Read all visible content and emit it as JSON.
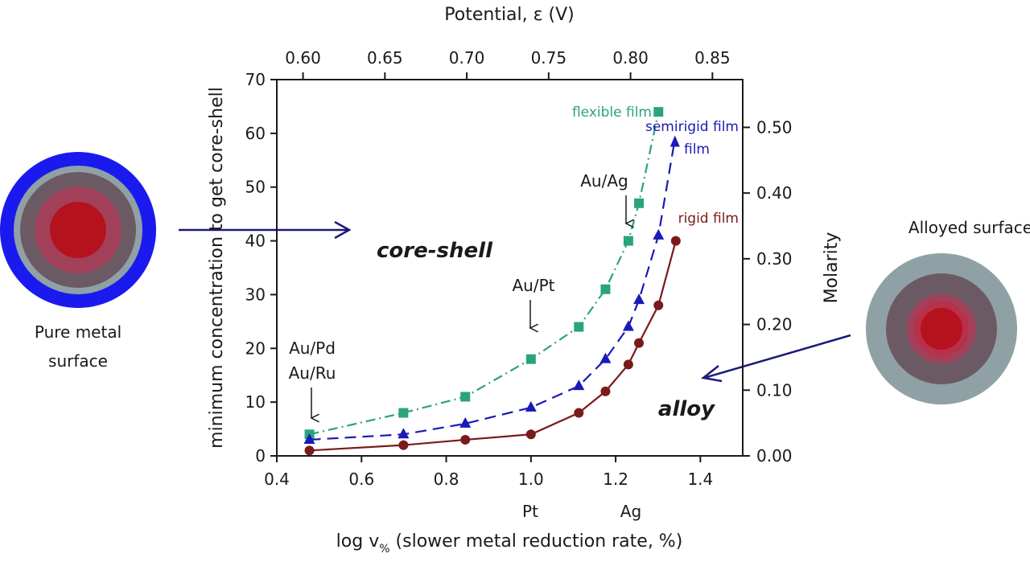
{
  "chart_data": {
    "type": "line",
    "title": "",
    "xlabel": "log v% (slower metal reduction rate, %)",
    "xlabel_main": "log v",
    "xlabel_sub": "%",
    "xlabel_rest": " (slower metal reduction rate, %)",
    "ylabel": "minimum concentration to get core-shell",
    "x2label": "Potential, ε (V)",
    "y2label": "Molarity",
    "xlim": [
      0.4,
      1.5
    ],
    "ylim": [
      0,
      70
    ],
    "x2lim": [
      0.584,
      0.8685
    ],
    "y2lim": [
      0,
      0.5727
    ],
    "xticks": [
      0.4,
      0.6,
      0.8,
      1.0,
      1.2,
      1.4
    ],
    "xtick_labels": [
      "0.4",
      "0.6",
      "0.8",
      "1.0",
      "1.2",
      "1.4"
    ],
    "yticks": [
      0,
      10,
      20,
      30,
      40,
      50,
      60,
      70
    ],
    "ytick_labels": [
      "0",
      "10",
      "20",
      "30",
      "40",
      "50",
      "60",
      "70"
    ],
    "x2ticks": [
      0.6,
      0.65,
      0.7,
      0.75,
      0.8,
      0.85
    ],
    "x2tick_labels": [
      "0.60",
      "0.65",
      "0.70",
      "0.75",
      "0.80",
      "0.85"
    ],
    "y2ticks": [
      0.0,
      0.1,
      0.2,
      0.3,
      0.4,
      0.5
    ],
    "y2tick_labels": [
      "0.00",
      "0.10",
      "0.20",
      "0.30",
      "0.40",
      "0.50"
    ],
    "grid": false,
    "series": [
      {
        "name": "flexible film",
        "color": "#2aa37f",
        "marker": "square",
        "linestyle": "dashdot",
        "x": [
          0.477,
          0.699,
          0.845,
          1.0,
          1.113,
          1.176,
          1.23,
          1.255,
          1.301
        ],
        "y": [
          4,
          8,
          11,
          18,
          24,
          31,
          40,
          47,
          64
        ]
      },
      {
        "name": "semirigid film",
        "color": "#1a1ab8",
        "marker": "triangle",
        "linestyle": "dashed",
        "x": [
          0.477,
          0.699,
          0.845,
          1.0,
          1.113,
          1.176,
          1.23,
          1.255,
          1.301
        ],
        "y": [
          3,
          4,
          6,
          9,
          13,
          18,
          24,
          29,
          41
        ],
        "arrow_end": {
          "x": 1.34,
          "y": 59
        }
      },
      {
        "name": "rigid film",
        "color": "#7a1a1a",
        "marker": "circle",
        "linestyle": "solid",
        "x": [
          0.477,
          0.699,
          0.845,
          1.0,
          1.113,
          1.176,
          1.23,
          1.255,
          1.301,
          1.342
        ],
        "y": [
          1,
          2,
          3,
          4,
          8,
          12,
          17,
          21,
          28,
          40
        ]
      }
    ],
    "annotations": [
      {
        "text": "Au/Pd",
        "x": 0.477
      },
      {
        "text": "Au/Ru",
        "x": 0.477
      },
      {
        "text": "Au/Pt",
        "x": 1.0
      },
      {
        "text": "Au/Ag",
        "x": 1.23
      }
    ],
    "x_sublabels": [
      {
        "text": "Pt",
        "x": 1.0
      },
      {
        "text": "Ag",
        "x": 1.23
      }
    ],
    "regions": [
      "core-shell",
      "alloy"
    ],
    "semirigid_label_line2": "film"
  },
  "diagram": {
    "left_caption_line1": "Pure metal",
    "left_caption_line2": "surface",
    "right_caption": "Alloyed surface",
    "arrow_color": "#1a1a7a"
  }
}
